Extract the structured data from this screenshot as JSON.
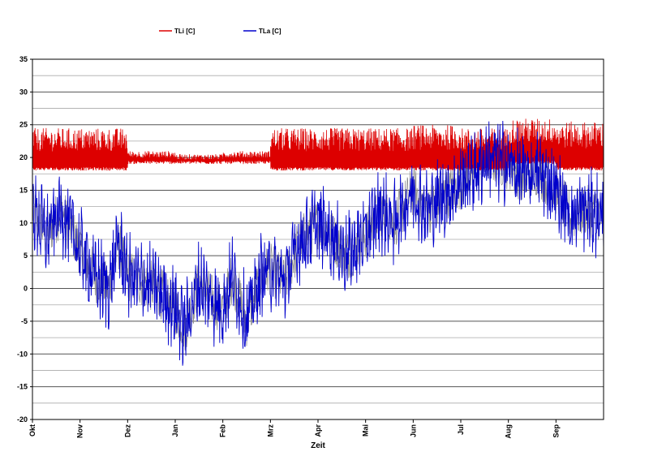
{
  "chart_data": {
    "type": "line",
    "title": "",
    "xlabel": "Zeit",
    "ylabel": "",
    "ylim": [
      -20,
      35
    ],
    "y_ticks": [
      -20,
      -15,
      -10,
      -5,
      0,
      5,
      10,
      15,
      20,
      25,
      30,
      35
    ],
    "x_tick_labels": [
      "Okt",
      "Nov",
      "Dez",
      "Jan",
      "Feb",
      "Mrz",
      "Apr",
      "Mai",
      "Jun",
      "Jul",
      "Aug",
      "Sep"
    ],
    "grid": true,
    "minor_gridline_step": 2.5,
    "legend_position": "top",
    "series": [
      {
        "name": "TLi [C]",
        "color": "#dd0000",
        "style": "dense hourly indoor temperature",
        "monthly_min": [
          18,
          18,
          19,
          19,
          19,
          18,
          18,
          18,
          18,
          18,
          19,
          18
        ],
        "monthly_max": [
          24.5,
          24.5,
          21,
          20.5,
          21,
          24.5,
          24.5,
          24.5,
          25,
          24.5,
          26,
          25.5
        ]
      },
      {
        "name": "TLa [C]",
        "color": "#0000cc",
        "style": "dense hourly outdoor temperature",
        "anchor_points": [
          [
            0.0,
            12
          ],
          [
            0.3,
            8
          ],
          [
            0.6,
            12
          ],
          [
            1.0,
            6
          ],
          [
            1.3,
            2
          ],
          [
            1.6,
            0
          ],
          [
            1.8,
            7
          ],
          [
            2.0,
            2
          ],
          [
            2.3,
            1
          ],
          [
            2.6,
            0
          ],
          [
            3.0,
            -3
          ],
          [
            3.2,
            -6
          ],
          [
            3.5,
            1
          ],
          [
            3.8,
            -2
          ],
          [
            4.0,
            -3
          ],
          [
            4.2,
            2
          ],
          [
            4.5,
            -5
          ],
          [
            4.8,
            2
          ],
          [
            5.0,
            3
          ],
          [
            5.3,
            1
          ],
          [
            5.6,
            7
          ],
          [
            6.0,
            10
          ],
          [
            6.3,
            8
          ],
          [
            6.6,
            5
          ],
          [
            7.0,
            8
          ],
          [
            7.3,
            12
          ],
          [
            7.6,
            10
          ],
          [
            8.0,
            15
          ],
          [
            8.3,
            12
          ],
          [
            8.6,
            14
          ],
          [
            9.0,
            16
          ],
          [
            9.3,
            18
          ],
          [
            9.6,
            20
          ],
          [
            10.0,
            19
          ],
          [
            10.3,
            17
          ],
          [
            10.6,
            18
          ],
          [
            11.0,
            15
          ],
          [
            11.3,
            11
          ],
          [
            11.6,
            12
          ],
          [
            12.0,
            11
          ]
        ]
      }
    ]
  },
  "legend": {
    "items": [
      "TLi [C]",
      "TLa [C]"
    ]
  }
}
